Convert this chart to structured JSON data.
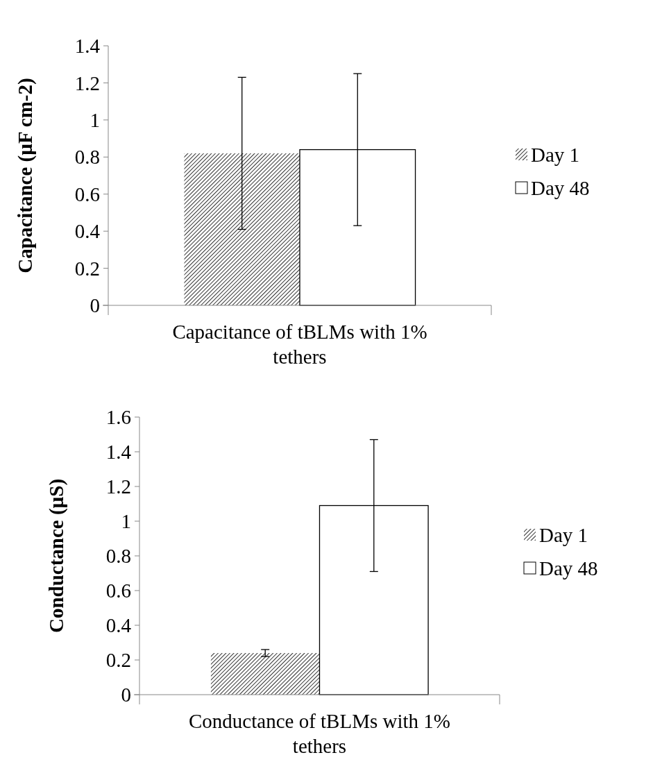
{
  "chart_data": [
    {
      "type": "bar",
      "ylabel": "Capacitance (µF cm-2)",
      "categories": [
        "Capacitance of tBLMs with 1% tethers"
      ],
      "ylim": [
        0,
        1.4
      ],
      "yticks": [
        0,
        0.2,
        0.4,
        0.6,
        0.8,
        1,
        1.2,
        1.4
      ],
      "legend": "right",
      "grid": false,
      "series": [
        {
          "name": "Day 1",
          "color": "#000000",
          "values": [
            0.82
          ],
          "errors": [
            0.41
          ]
        },
        {
          "name": "Day 48",
          "color": "#ffffff",
          "values": [
            0.84
          ],
          "errors": [
            0.41
          ]
        }
      ]
    },
    {
      "type": "bar",
      "ylabel": "Conductance (µS)",
      "categories": [
        "Conductance of tBLMs with 1% tethers"
      ],
      "ylim": [
        0,
        1.6
      ],
      "yticks": [
        0,
        0.2,
        0.4,
        0.6,
        0.8,
        1,
        1.2,
        1.4,
        1.6
      ],
      "legend": "right",
      "grid": false,
      "series": [
        {
          "name": "Day 1",
          "color": "#000000",
          "values": [
            0.24
          ],
          "errors": [
            0.02
          ]
        },
        {
          "name": "Day 48",
          "color": "#ffffff",
          "values": [
            1.09
          ],
          "errors": [
            0.38
          ]
        }
      ]
    }
  ]
}
